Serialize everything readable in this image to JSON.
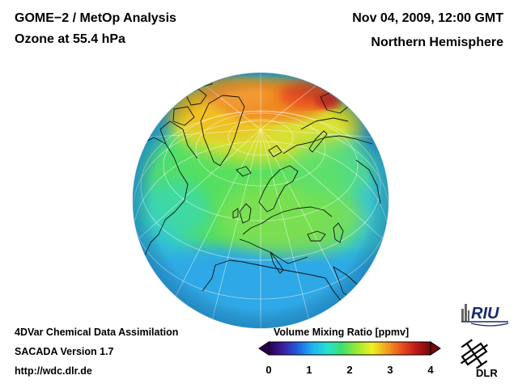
{
  "header": {
    "title_line1": "GOME−2 / MetOp Analysis",
    "title_line2": "Ozone at 55.4 hPa",
    "datetime": "Nov 04, 2009, 12:00 GMT",
    "region": "Northern Hemisphere"
  },
  "footer": {
    "line1": "4DVar Chemical Data Assimilation",
    "line2": "SACADA Version 1.7",
    "url": "http://wdc.dlr.de"
  },
  "colorbar": {
    "title": "Volume Mixing Ratio [ppmv]",
    "ticks": [
      "0",
      "1",
      "2",
      "3",
      "4"
    ],
    "range": [
      0,
      4
    ],
    "colors": [
      "#2a0050",
      "#3a1fa0",
      "#1f5fe0",
      "#1fb4f0",
      "#25e0d0",
      "#3ce070",
      "#a0e830",
      "#f0f020",
      "#f0a020",
      "#e85020",
      "#c01818",
      "#700a0a"
    ]
  },
  "logos": {
    "riu": "RIU",
    "dlr": "DLR"
  },
  "map": {
    "colors": {
      "ocean_low": "#2ea8e6",
      "mid": "#35d8b8",
      "green": "#55e060",
      "high": "#e8d020",
      "peak": "#e84020"
    }
  }
}
